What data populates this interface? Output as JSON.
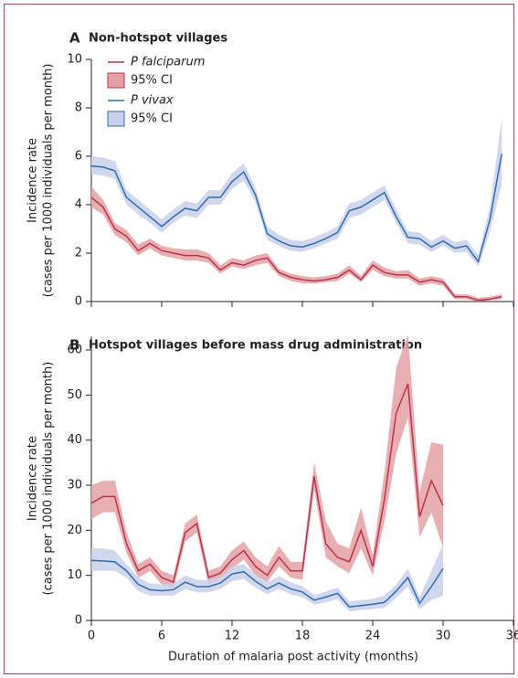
{
  "chart_data": [
    {
      "type": "line",
      "panel": "A",
      "title": "Non-hotspot villages",
      "ylabel": [
        "Incidence rate",
        "(cases per 1000 individuals per month)"
      ],
      "x": [
        0,
        1,
        2,
        3,
        4,
        5,
        6,
        7,
        8,
        9,
        10,
        11,
        12,
        13,
        14,
        15,
        16,
        17,
        18,
        19,
        20,
        21,
        22,
        23,
        24,
        25,
        26,
        27,
        28,
        29,
        30,
        31,
        32,
        33,
        34,
        35
      ],
      "xlim": [
        0,
        36
      ],
      "xticks": [
        0,
        6,
        12,
        18,
        24,
        30,
        36
      ],
      "ylim": [
        0,
        10
      ],
      "yticks": [
        0,
        2,
        4,
        6,
        8,
        10
      ],
      "legend": "upper left",
      "series": [
        {
          "name": "P falciparum",
          "color": "#c0304a",
          "values": [
            4.3,
            3.9,
            3.0,
            2.7,
            2.1,
            2.4,
            2.1,
            2.0,
            1.9,
            1.9,
            1.8,
            1.3,
            1.6,
            1.5,
            1.7,
            1.8,
            1.2,
            1.0,
            0.9,
            0.85,
            0.9,
            1.0,
            1.3,
            0.9,
            1.5,
            1.2,
            1.1,
            1.1,
            0.8,
            0.9,
            0.8,
            0.2,
            0.2,
            0.05,
            0.1,
            0.2
          ],
          "ci": {
            "name": "95% CI",
            "color": "#e3a1a3",
            "lower": [
              3.9,
              3.6,
              2.75,
              2.45,
              1.9,
              2.2,
              1.9,
              1.8,
              1.7,
              1.7,
              1.6,
              1.15,
              1.45,
              1.35,
              1.5,
              1.6,
              1.05,
              0.85,
              0.75,
              0.75,
              0.8,
              0.85,
              1.15,
              0.8,
              1.3,
              1.05,
              0.95,
              0.95,
              0.65,
              0.75,
              0.65,
              0.1,
              0.1,
              0,
              0.05,
              0.1
            ],
            "upper": [
              4.75,
              4.2,
              3.25,
              2.95,
              2.35,
              2.6,
              2.3,
              2.2,
              2.15,
              2.15,
              2.0,
              1.5,
              1.8,
              1.7,
              1.9,
              2.0,
              1.35,
              1.15,
              1.05,
              1.0,
              1.05,
              1.15,
              1.5,
              1.05,
              1.7,
              1.4,
              1.25,
              1.3,
              0.95,
              1.05,
              0.95,
              0.3,
              0.3,
              0.15,
              0.2,
              0.3
            ]
          }
        },
        {
          "name": "P vivax",
          "color": "#2c6db3",
          "values": [
            5.6,
            5.55,
            5.4,
            4.3,
            3.9,
            3.5,
            3.1,
            3.5,
            3.85,
            3.75,
            4.3,
            4.3,
            4.95,
            5.35,
            4.4,
            2.8,
            2.5,
            2.3,
            2.25,
            2.4,
            2.6,
            2.85,
            3.75,
            3.9,
            4.2,
            4.5,
            3.5,
            2.65,
            2.6,
            2.25,
            2.5,
            2.2,
            2.3,
            1.65,
            3.4,
            6.1
          ],
          "ci": {
            "name": "95% CI",
            "color": "#c9d0ea",
            "lower": [
              5.25,
              5.2,
              5.05,
              4.0,
              3.6,
              3.25,
              2.85,
              3.25,
              3.55,
              3.45,
              4.0,
              4.0,
              4.65,
              5.0,
              4.1,
              2.55,
              2.3,
              2.1,
              2.05,
              2.2,
              2.4,
              2.6,
              3.45,
              3.6,
              3.9,
              4.2,
              3.25,
              2.4,
              2.35,
              2.05,
              2.3,
              2.0,
              2.05,
              1.45,
              2.9,
              4.8
            ],
            "upper": [
              6.0,
              5.95,
              5.8,
              4.6,
              4.2,
              3.8,
              3.4,
              3.8,
              4.15,
              4.05,
              4.6,
              4.6,
              5.3,
              5.7,
              4.7,
              3.1,
              2.75,
              2.55,
              2.5,
              2.65,
              2.85,
              3.1,
              4.05,
              4.2,
              4.5,
              4.8,
              3.8,
              2.9,
              2.85,
              2.5,
              2.75,
              2.45,
              2.55,
              1.9,
              3.9,
              7.6
            ]
          }
        }
      ]
    },
    {
      "type": "line",
      "panel": "B",
      "title": "Hotspot villages before mass drug administration",
      "ylabel": [
        "Incidence rate",
        "(cases per 1000 individuals per month)"
      ],
      "xlabel": "Duration of malaria post activity (months)",
      "x": [
        0,
        1,
        2,
        3,
        4,
        5,
        6,
        7,
        8,
        9,
        10,
        11,
        12,
        13,
        14,
        15,
        16,
        17,
        18,
        19,
        20,
        21,
        22,
        23,
        24,
        25,
        26,
        27,
        28,
        29,
        30
      ],
      "xlim": [
        0,
        36
      ],
      "xticks": [
        0,
        6,
        12,
        18,
        24,
        30,
        36
      ],
      "ylim": [
        0,
        63
      ],
      "yticks": [
        0,
        10,
        20,
        30,
        40,
        50,
        60
      ],
      "series": [
        {
          "color": "#c0304a",
          "values": [
            26,
            27.5,
            27.5,
            17,
            11,
            12.5,
            9.5,
            8.5,
            19.5,
            21.5,
            9.5,
            10.5,
            13.5,
            15.5,
            12,
            10,
            14,
            11,
            11,
            32,
            17,
            14,
            13,
            20,
            12,
            27,
            46,
            52.5,
            23,
            31,
            25.5
          ],
          "ci": {
            "color": "#e3a1a3",
            "lower": [
              22.5,
              24,
              24,
              15,
              9.5,
              11,
              8,
              7,
              17.5,
              19.5,
              8,
              9,
              11.5,
              13.5,
              10,
              8.5,
              12,
              9.5,
              9,
              29,
              14,
              12,
              10.5,
              16,
              10,
              22,
              37,
              45,
              18.5,
              24,
              16
            ],
            "upper": [
              30,
              31,
              31,
              19.5,
              12.5,
              14,
              11,
              10,
              21.5,
              23.5,
              11,
              12,
              15.5,
              17.5,
              14,
              12,
              16.5,
              13,
              13,
              35,
              22,
              17,
              16,
              25,
              14.5,
              33,
              56,
              63.5,
              28.5,
              39.5,
              39
            ]
          }
        },
        {
          "color": "#2c6db3",
          "values": [
            13.3,
            13.2,
            13,
            11,
            8,
            6.8,
            6.6,
            6.8,
            8.5,
            7.5,
            7.5,
            8.3,
            10.3,
            10.8,
            8.7,
            7,
            8.3,
            7,
            6.3,
            4.5,
            5.2,
            6,
            3,
            3.3,
            3.6,
            4,
            6.5,
            9.5,
            3.8,
            7.5,
            11.5
          ],
          "ci": {
            "color": "#c9d0ea",
            "lower": [
              11,
              11,
              11,
              9.5,
              6.5,
              5.5,
              5.5,
              5.5,
              7,
              6.2,
              6.2,
              7,
              8.7,
              9.2,
              7.3,
              5.8,
              7,
              5.8,
              5.2,
              3.5,
              4,
              4.8,
              2,
              2.3,
              2.5,
              2.8,
              5,
              7.5,
              2.5,
              4.5,
              5.5
            ],
            "upper": [
              16,
              16,
              15.5,
              12.5,
              9.5,
              8.2,
              8,
              8.2,
              10,
              9,
              9,
              9.7,
              12,
              12.5,
              10.2,
              8.5,
              9.8,
              8.5,
              7.6,
              5.6,
              6.4,
              7.3,
              4.2,
              4.5,
              4.8,
              5.5,
              8,
              11.5,
              5.2,
              11,
              17
            ]
          }
        }
      ]
    }
  ]
}
